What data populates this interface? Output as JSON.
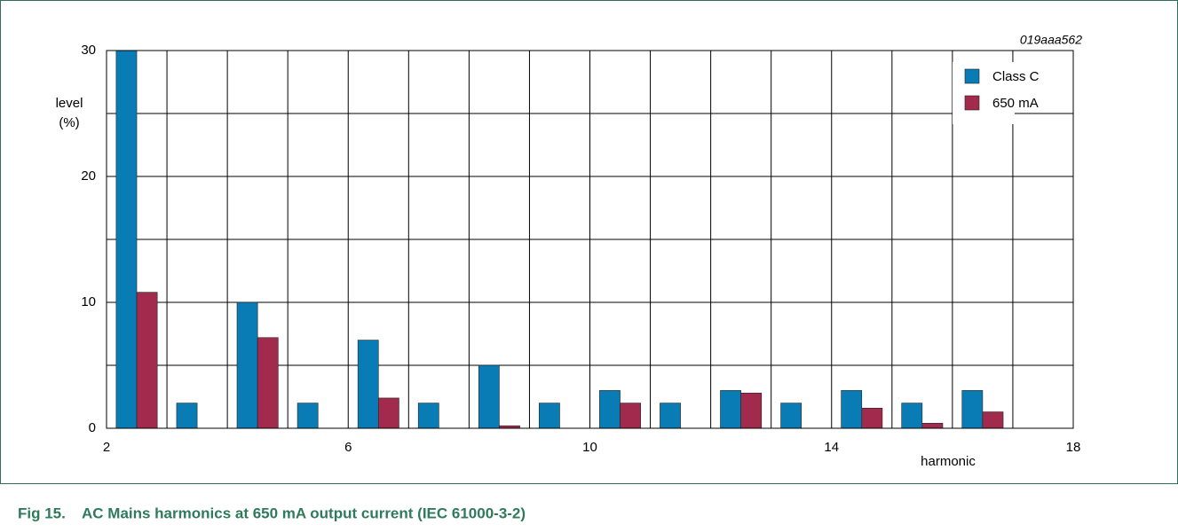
{
  "chart_data": {
    "type": "bar",
    "code": "019aaa562",
    "y_label": [
      "level",
      "(%)"
    ],
    "x_label": "harmonic",
    "figure_label": "Fig 15.",
    "title": "AC Mains harmonics at 650 mA output current (IEC 61000-3-2)",
    "x": [
      2,
      3,
      4,
      5,
      6,
      7,
      8,
      9,
      10,
      11,
      12,
      13,
      14,
      15,
      16
    ],
    "series": [
      {
        "name": "Class C",
        "color": "#0a7cb5",
        "values": [
          30,
          2,
          10,
          2,
          7,
          2,
          5,
          2,
          3,
          2,
          3,
          2,
          3,
          2,
          3
        ]
      },
      {
        "name": "650 mA",
        "color": "#a22a4c",
        "values": [
          10.8,
          null,
          7.2,
          null,
          2.4,
          null,
          0.2,
          null,
          2,
          null,
          2.8,
          null,
          1.6,
          0.4,
          1.3
        ]
      }
    ],
    "xlim": [
      2,
      18
    ],
    "xticks": [
      2,
      6,
      10,
      14,
      18
    ],
    "minor_xticks": [
      3,
      4,
      5,
      7,
      8,
      9,
      11,
      12,
      13,
      15,
      16,
      17
    ],
    "ylim": [
      0,
      30
    ],
    "yticks": [
      0,
      10,
      20,
      30
    ],
    "minor_yticks": [
      5,
      15,
      25
    ],
    "grid": true,
    "legend": "upper right"
  }
}
